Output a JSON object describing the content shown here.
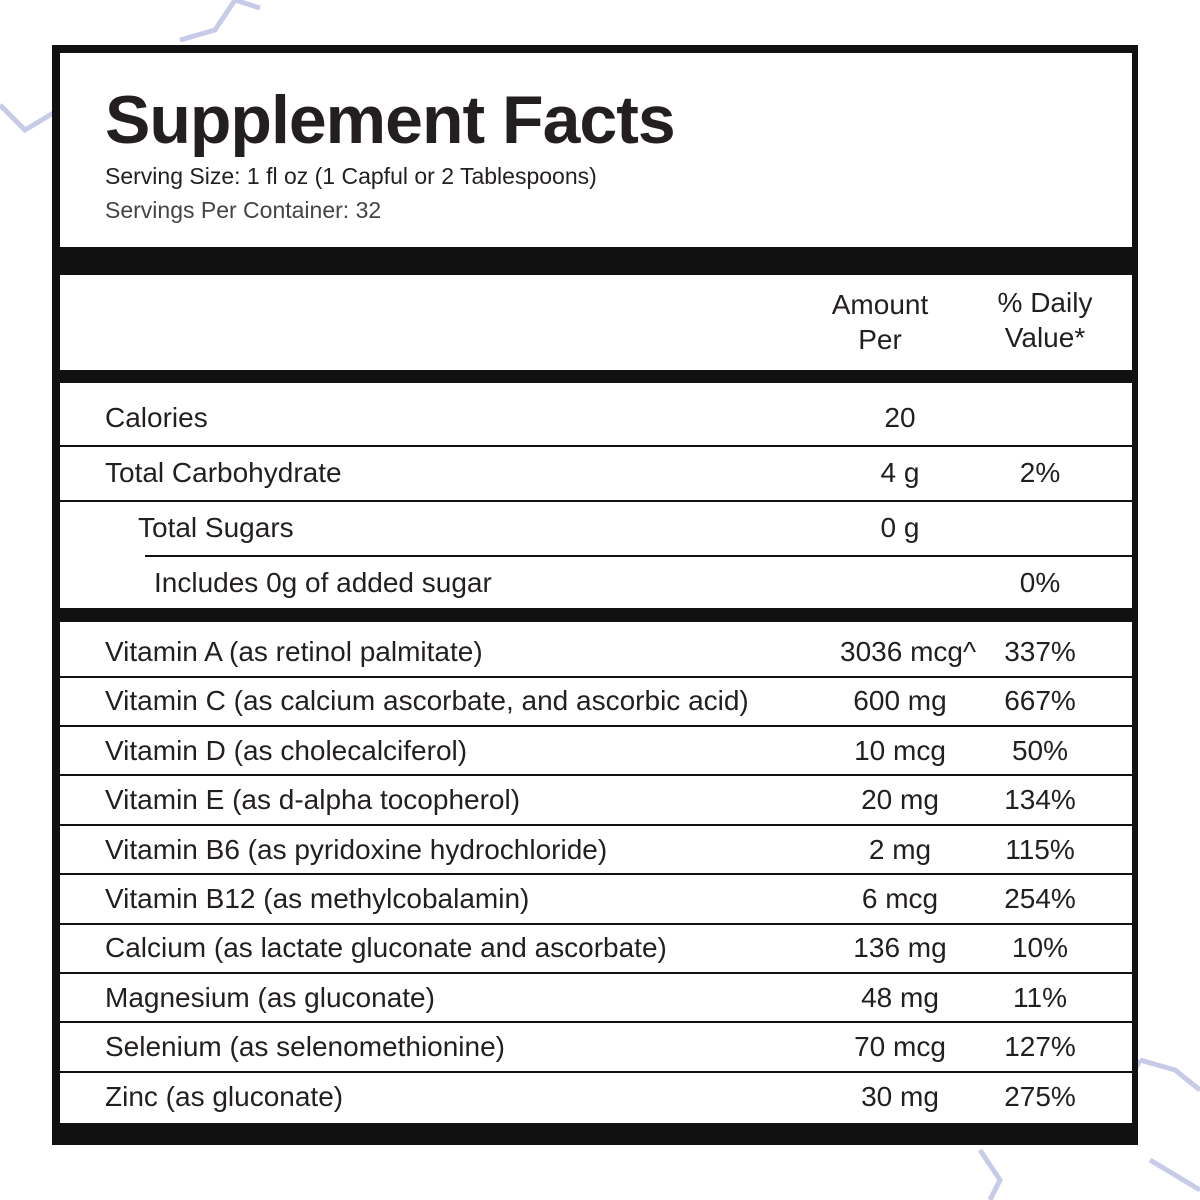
{
  "header": {
    "title": "Supplement Facts",
    "serving_size": "Serving Size: 1 fl oz (1 Capful or 2 Tablespoons)",
    "servings_per_container": "Servings Per Container: 32"
  },
  "columns": {
    "amount": "Amount Per",
    "daily_value": "% Daily Value*"
  },
  "macros": [
    {
      "name": "Calories",
      "amount": "20"
    },
    {
      "name": "Total Carbohydrate",
      "amount": "4 g",
      "dv": "2%"
    },
    {
      "name": "Total Sugars",
      "amount": "0 g"
    },
    {
      "name": "Includes 0g of added sugar",
      "dv": "0%"
    }
  ],
  "vitamins": [
    {
      "name": "Vitamin A (as retinol palmitate)",
      "amount": "3036 mcg^",
      "dv": "337%"
    },
    {
      "name": "Vitamin C (as calcium ascorbate, and ascorbic acid)",
      "amount": "600 mg",
      "dv": "667%"
    },
    {
      "name": "Vitamin D (as cholecalciferol)",
      "amount": "10 mcg",
      "dv": "50%"
    },
    {
      "name": "Vitamin E (as d-alpha tocopherol)",
      "amount": "20 mg",
      "dv": "134%"
    },
    {
      "name": "Vitamin B6 (as pyridoxine hydrochloride)",
      "amount": "2 mg",
      "dv": "115%"
    },
    {
      "name": "Vitamin B12 (as methylcobalamin)",
      "amount": "6 mcg",
      "dv": "254%"
    },
    {
      "name": "Calcium (as lactate gluconate and ascorbate)",
      "amount": "136 mg",
      "dv": "10%"
    },
    {
      "name": "Magnesium (as gluconate)",
      "amount": "48 mg",
      "dv": "11%"
    },
    {
      "name": "Selenium (as selenomethionine)",
      "amount": "70 mcg",
      "dv": "127%"
    },
    {
      "name": "Zinc (as gluconate)",
      "amount": "30 mg",
      "dv": "275%"
    }
  ]
}
